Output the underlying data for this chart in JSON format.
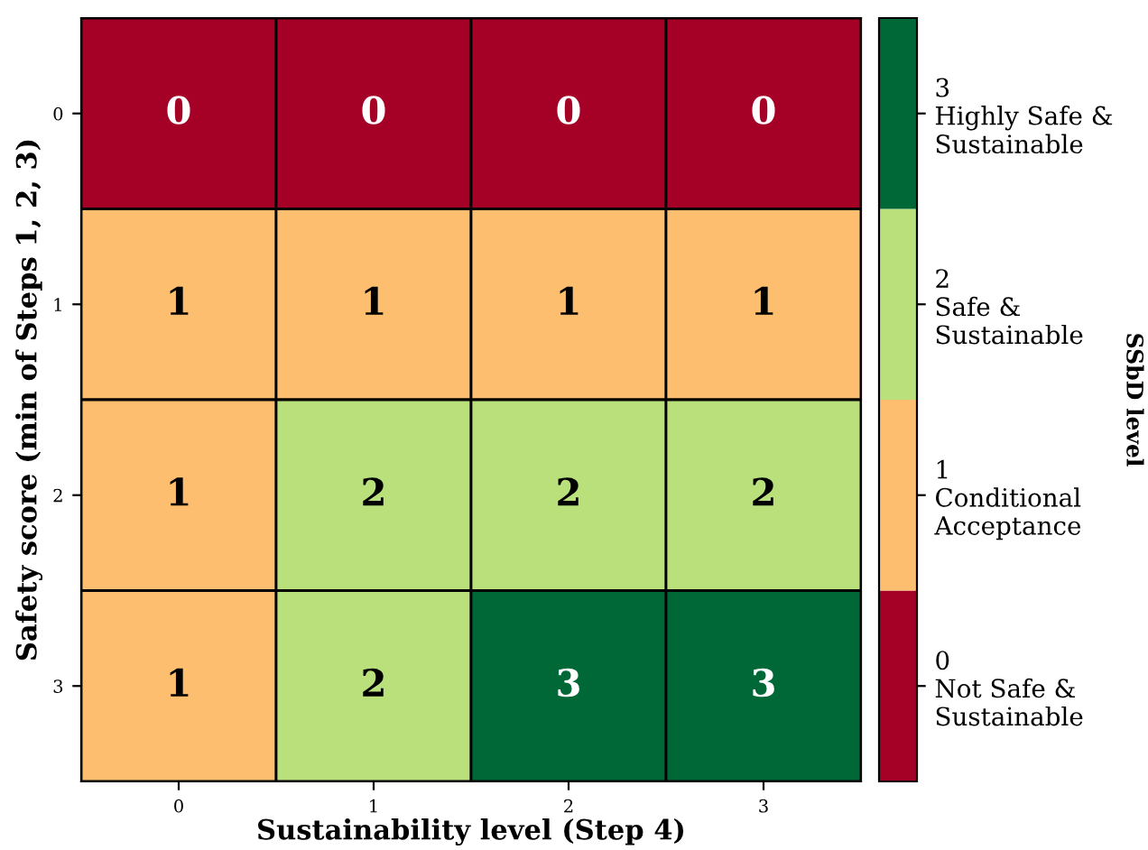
{
  "chart_data": {
    "type": "heatmap",
    "xlabel": "Sustainability level (Step 4)",
    "ylabel": "Safety score (min of Steps 1, 2, 3)",
    "clabel": "SSbD level",
    "categories": [
      "0",
      "1",
      "2",
      "3"
    ],
    "y_categories": [
      "0",
      "1",
      "2",
      "3"
    ],
    "cells": [
      [
        0,
        0,
        0,
        0
      ],
      [
        1,
        1,
        1,
        1
      ],
      [
        1,
        2,
        2,
        2
      ],
      [
        1,
        2,
        3,
        3
      ]
    ],
    "colors": [
      "#a50026",
      "#fdbf6f",
      "#b9e07a",
      "#006837"
    ],
    "data_labels": true,
    "clim": [
      -0.5,
      3.5
    ],
    "cticks": [
      {
        "value": 0,
        "label": "0\nNot Safe &\nSustainable"
      },
      {
        "value": 1,
        "label": "1\nConditional\nAcceptance"
      },
      {
        "value": 2,
        "label": "2\nSafe &\nSustainable"
      },
      {
        "value": 3,
        "label": "3\nHighly Safe &\nSustainable"
      }
    ]
  }
}
